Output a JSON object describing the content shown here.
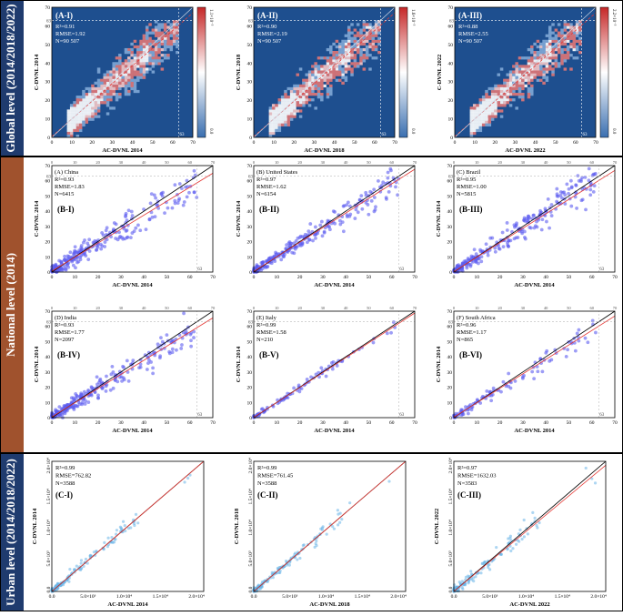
{
  "sections": [
    {
      "label": "Global level (2014/2018/2022)",
      "color": "#1f3b6e"
    },
    {
      "label": "National level (2014)",
      "color": "#a0522d"
    },
    {
      "label": "Urban  level (2014/2018/2022)",
      "color": "#1f3b6e"
    }
  ],
  "chart_data": [
    {
      "type": "heatmap",
      "panel": "(A-I)",
      "stats": [
        "R²=0.91",
        "RMSE=1.92",
        "N=90 507"
      ],
      "xlabel": "AC-DVNL 2014",
      "ylabel": "C-DVNL 2014",
      "xlim": [
        0,
        70
      ],
      "ylim": [
        0,
        70
      ],
      "ticks": [
        0,
        10,
        20,
        30,
        40,
        50,
        60,
        70
      ],
      "ref_value": 63,
      "colorbar": {
        "min_label": "0.0",
        "max_label": "1.1×10⁻³",
        "colors": [
          "#3a6fb0",
          "#ffffff",
          "#c62828"
        ]
      },
      "background": "#1e4f8f"
    },
    {
      "type": "heatmap",
      "panel": "(A-II)",
      "stats": [
        "R²=0.90",
        "RMSE=2.19",
        "N=90 507"
      ],
      "xlabel": "AC-DVNL 2018",
      "ylabel": "C-DVNL 2018",
      "xlim": [
        0,
        70
      ],
      "ylim": [
        0,
        70
      ],
      "ticks": [
        0,
        10,
        20,
        30,
        40,
        50,
        60,
        70
      ],
      "ref_value": 63,
      "colorbar": {
        "min_label": "0.0",
        "max_label": "1.6×10⁻³",
        "colors": [
          "#3a6fb0",
          "#ffffff",
          "#c62828"
        ]
      },
      "background": "#1e4f8f"
    },
    {
      "type": "heatmap",
      "panel": "(A-III)",
      "stats": [
        "R²=0.88",
        "RMSE=2.55",
        "N=90 507"
      ],
      "xlabel": "AC-DVNL 2022",
      "ylabel": "C-DVNL 2022",
      "xlim": [
        0,
        70
      ],
      "ylim": [
        0,
        70
      ],
      "ticks": [
        0,
        10,
        20,
        30,
        40,
        50,
        60,
        70
      ],
      "ref_value": 63,
      "colorbar": {
        "min_label": "0.0",
        "max_label": "2.2×10⁻³",
        "colors": [
          "#3a6fb0",
          "#ffffff",
          "#c62828"
        ]
      },
      "background": "#1e4f8f"
    },
    {
      "type": "scatter",
      "panel": "(B-I)",
      "region": "(A) China",
      "stats": [
        "R²=0.93",
        "RMSE=1.83",
        "N=6415"
      ],
      "xlabel": "AC-DVNL 2014",
      "ylabel": "C-DVNL 2014",
      "xlim": [
        0,
        70
      ],
      "ylim": [
        0,
        70
      ],
      "ticks": [
        0,
        10,
        20,
        30,
        40,
        50,
        60,
        70
      ],
      "ref_value": 63,
      "fit": {
        "slope": 0.92,
        "intercept": 0.6
      },
      "point_color": "#5b5bf0",
      "spread": 4.5
    },
    {
      "type": "scatter",
      "panel": "(B-II)",
      "region": "(B) United States",
      "stats": [
        "R²=0.97",
        "RMSE=1.62",
        "N=6154"
      ],
      "xlabel": "AC-DVNL 2014",
      "ylabel": "C-DVNL 2014",
      "xlim": [
        0,
        70
      ],
      "ylim": [
        0,
        70
      ],
      "ticks": [
        0,
        10,
        20,
        30,
        40,
        50,
        60,
        70
      ],
      "ref_value": 63,
      "fit": {
        "slope": 0.96,
        "intercept": 0.4
      },
      "point_color": "#5b5bf0",
      "spread": 3
    },
    {
      "type": "scatter",
      "panel": "(B-III)",
      "region": "(C) Brazil",
      "stats": [
        "R²=0.95",
        "RMSE=1.00",
        "N=5815"
      ],
      "xlabel": "AC-DVNL 2014",
      "ylabel": "C-DVNL 2014",
      "xlim": [
        0,
        70
      ],
      "ylim": [
        0,
        70
      ],
      "ticks": [
        0,
        10,
        20,
        30,
        40,
        50,
        60,
        70
      ],
      "ref_value": 63,
      "fit": {
        "slope": 0.95,
        "intercept": 0.3
      },
      "point_color": "#5b5bf0",
      "spread": 3.5
    },
    {
      "type": "scatter",
      "panel": "(B-IV)",
      "region": "(D) India",
      "stats": [
        "R²=0.93",
        "RMSE=1.77",
        "N=2097"
      ],
      "xlabel": "AC-DVNL 2014",
      "ylabel": "C-DVNL 2014",
      "xlim": [
        0,
        70
      ],
      "ylim": [
        0,
        70
      ],
      "ticks": [
        0,
        10,
        20,
        30,
        40,
        50,
        60,
        70
      ],
      "ref_value": 63,
      "fit": {
        "slope": 0.93,
        "intercept": 0.5
      },
      "point_color": "#5b5bf0",
      "spread": 3.5
    },
    {
      "type": "scatter",
      "panel": "(B-V)",
      "region": "(E) Italy",
      "stats": [
        "R²=0.99",
        "RMSE=1.58",
        "N=210"
      ],
      "xlabel": "AC-DVNL 2014",
      "ylabel": "C-DVNL 2014",
      "xlim": [
        0,
        70
      ],
      "ylim": [
        0,
        70
      ],
      "ticks": [
        0,
        10,
        20,
        30,
        40,
        50,
        60,
        70
      ],
      "ref_value": 63,
      "fit": {
        "slope": 0.98,
        "intercept": 0.2
      },
      "point_color": "#5b5bf0",
      "spread": 1.5
    },
    {
      "type": "scatter",
      "panel": "(B-VI)",
      "region": "(F) South Africa",
      "stats": [
        "R²=0.96",
        "RMSE=1.17",
        "N=865"
      ],
      "xlabel": "AC-DVNL 2014",
      "ylabel": "C-DVNL 2014",
      "xlim": [
        0,
        70
      ],
      "ylim": [
        0,
        70
      ],
      "ticks": [
        0,
        10,
        20,
        30,
        40,
        50,
        60,
        70
      ],
      "ref_value": 63,
      "fit": {
        "slope": 0.95,
        "intercept": 0.3
      },
      "point_color": "#5b5bf0",
      "spread": 2.5
    },
    {
      "type": "scatter",
      "panel": "(C-I)",
      "stats": [
        "R²=0.99",
        "RMSE=762.82",
        "N=3588"
      ],
      "xlabel": "AC-DVNL 2014",
      "ylabel": "C-DVNL 2014",
      "xlim": [
        0,
        21000
      ],
      "ylim": [
        0,
        21000
      ],
      "tick_values": [
        0,
        5000,
        10000,
        15000,
        20000
      ],
      "tick_labels": [
        "0.0",
        "5.0×10³",
        "1.0×10⁴",
        "1.5×10⁴",
        "2.0×10⁴"
      ],
      "fit": {
        "slope": 1.0,
        "intercept": 0
      },
      "point_color": "#6ab4e8",
      "spread": 600
    },
    {
      "type": "scatter",
      "panel": "(C-II)",
      "stats": [
        "R²=0.99",
        "RMSE=761.45",
        "N=3588"
      ],
      "xlabel": "AC-DVNL 2018",
      "ylabel": "C-DVNL 2018",
      "xlim": [
        0,
        21000
      ],
      "ylim": [
        0,
        21000
      ],
      "tick_values": [
        0,
        5000,
        10000,
        15000,
        20000
      ],
      "tick_labels": [
        "0.0",
        "5.0×10³",
        "1.0×10⁴",
        "1.5×10⁴",
        "2.0×10⁴"
      ],
      "fit": {
        "slope": 1.0,
        "intercept": 0
      },
      "point_color": "#6ab4e8",
      "spread": 600
    },
    {
      "type": "scatter",
      "panel": "(C-III)",
      "stats": [
        "R²=0.97",
        "RMSE=1632.03",
        "N=3583"
      ],
      "xlabel": "AC-DVNL 2022",
      "ylabel": "C-DVNL 2022",
      "xlim": [
        0,
        21000
      ],
      "ylim": [
        0,
        21000
      ],
      "tick_values": [
        0,
        5000,
        10000,
        15000,
        20000
      ],
      "tick_labels": [
        "0.0",
        "5.0×10³",
        "1.0×10⁴",
        "1.5×10⁴",
        "2.0×10⁴"
      ],
      "fit": {
        "slope": 0.97,
        "intercept": 0
      },
      "point_color": "#6ab4e8",
      "spread": 900
    }
  ]
}
